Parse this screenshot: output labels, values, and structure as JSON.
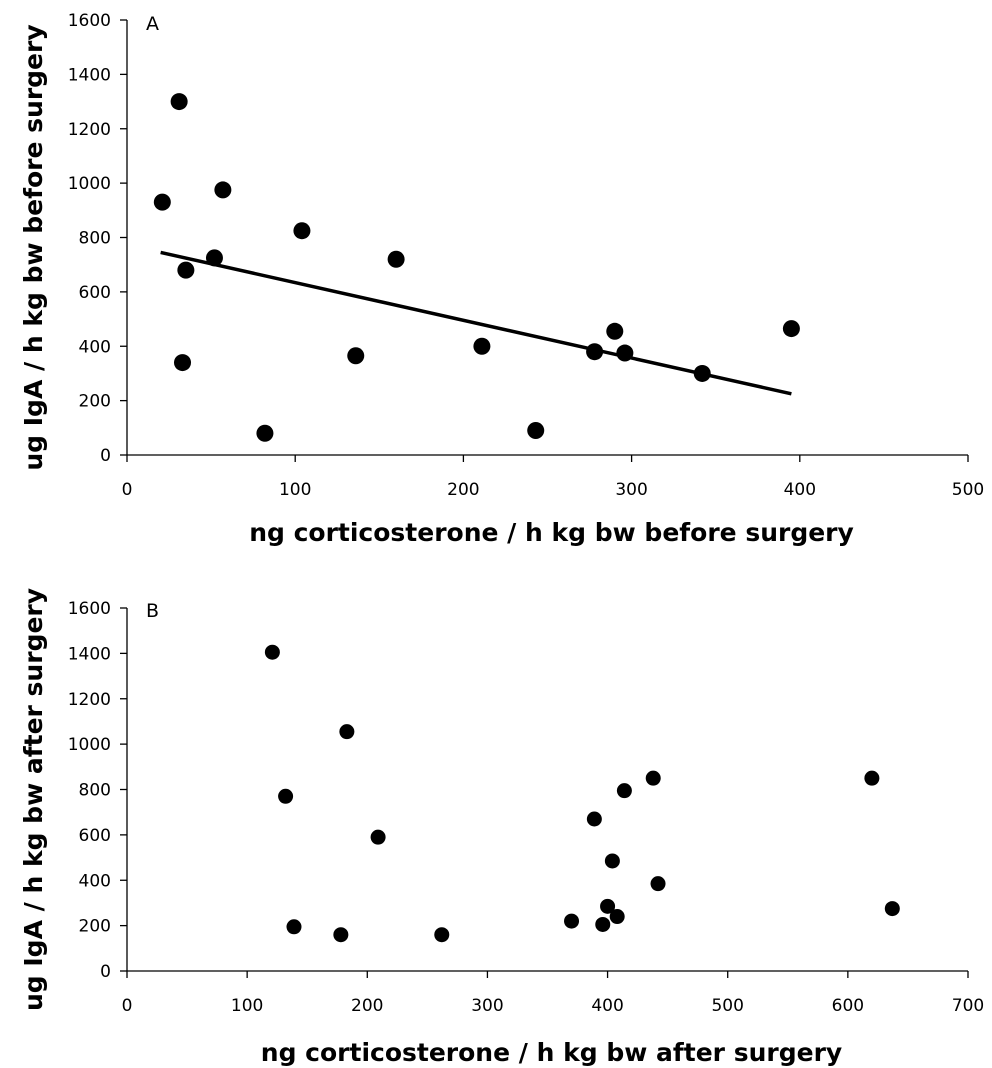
{
  "chart_data": [
    {
      "type": "scatter",
      "panel_label": "A",
      "xlabel": "ng corticosterone / h kg bw before surgery",
      "ylabel": "ug IgA / h kg bw before surgery",
      "xlim": [
        0,
        500
      ],
      "ylim": [
        0,
        1600
      ],
      "x_ticks": [
        0,
        100,
        200,
        300,
        400,
        500
      ],
      "y_ticks": [
        0,
        200,
        400,
        600,
        800,
        1000,
        1200,
        1400,
        1600
      ],
      "grid": false,
      "legend": "none",
      "points": [
        {
          "x": 21,
          "y": 930
        },
        {
          "x": 31,
          "y": 1300
        },
        {
          "x": 33,
          "y": 340
        },
        {
          "x": 35,
          "y": 680
        },
        {
          "x": 52,
          "y": 725
        },
        {
          "x": 57,
          "y": 975
        },
        {
          "x": 82,
          "y": 80
        },
        {
          "x": 104,
          "y": 825
        },
        {
          "x": 136,
          "y": 365
        },
        {
          "x": 160,
          "y": 720
        },
        {
          "x": 211,
          "y": 400
        },
        {
          "x": 243,
          "y": 90
        },
        {
          "x": 278,
          "y": 380
        },
        {
          "x": 290,
          "y": 455
        },
        {
          "x": 296,
          "y": 375
        },
        {
          "x": 342,
          "y": 300
        },
        {
          "x": 395,
          "y": 465
        }
      ],
      "trendline": {
        "x": [
          20,
          395
        ],
        "y": [
          745,
          225
        ]
      }
    },
    {
      "type": "scatter",
      "panel_label": "B",
      "xlabel": "ng corticosterone / h kg bw after surgery",
      "ylabel": "ug IgA / h kg bw after surgery",
      "xlim": [
        0,
        700
      ],
      "ylim": [
        0,
        1600
      ],
      "x_ticks": [
        0,
        100,
        200,
        300,
        400,
        500,
        600,
        700
      ],
      "y_ticks": [
        0,
        200,
        400,
        600,
        800,
        1000,
        1200,
        1400,
        1600
      ],
      "grid": false,
      "legend": "none",
      "points": [
        {
          "x": 121,
          "y": 1405
        },
        {
          "x": 132,
          "y": 770
        },
        {
          "x": 139,
          "y": 195
        },
        {
          "x": 178,
          "y": 160
        },
        {
          "x": 183,
          "y": 1055
        },
        {
          "x": 209,
          "y": 590
        },
        {
          "x": 262,
          "y": 160
        },
        {
          "x": 370,
          "y": 220
        },
        {
          "x": 389,
          "y": 670
        },
        {
          "x": 396,
          "y": 205
        },
        {
          "x": 400,
          "y": 285
        },
        {
          "x": 404,
          "y": 485
        },
        {
          "x": 408,
          "y": 240
        },
        {
          "x": 414,
          "y": 795
        },
        {
          "x": 438,
          "y": 850
        },
        {
          "x": 442,
          "y": 385
        },
        {
          "x": 620,
          "y": 850
        },
        {
          "x": 637,
          "y": 275
        }
      ]
    }
  ]
}
